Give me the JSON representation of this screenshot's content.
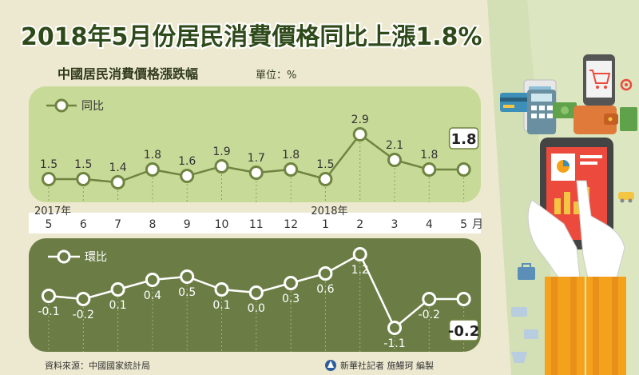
{
  "header": {
    "title": "2018年5月份居民消費價格同比上漲1.8%",
    "subtitle": "中國居民消費價格漲跌幅",
    "unit_label": "單位：%"
  },
  "chart_data": [
    {
      "type": "line",
      "name": "yoy",
      "legend": "同比",
      "categories": [
        "5",
        "6",
        "7",
        "8",
        "9",
        "10",
        "11",
        "12",
        "1",
        "2",
        "3",
        "4",
        "5"
      ],
      "year_labels": [
        {
          "index": 0,
          "label": "2017年"
        },
        {
          "index": 8,
          "label": "2018年"
        }
      ],
      "month_suffix": "月",
      "values": [
        1.5,
        1.5,
        1.4,
        1.8,
        1.6,
        1.9,
        1.7,
        1.8,
        1.5,
        2.9,
        2.1,
        1.8,
        1.8
      ],
      "highlight_last": true,
      "colors": {
        "panel": "#c8da98",
        "line": "#6e8440",
        "marker": "#ffffff",
        "text": "#333333"
      }
    },
    {
      "type": "line",
      "name": "mom",
      "legend": "環比",
      "categories": [
        "5",
        "6",
        "7",
        "8",
        "9",
        "10",
        "11",
        "12",
        "1",
        "2",
        "3",
        "4",
        "5"
      ],
      "values": [
        -0.1,
        -0.2,
        0.1,
        0.4,
        0.5,
        0.1,
        0.0,
        0.3,
        0.6,
        1.2,
        -1.1,
        -0.2,
        -0.2
      ],
      "highlight_last": true,
      "colors": {
        "panel": "#6b7d45",
        "line": "#ffffff",
        "marker": "#6b7d45",
        "text": "#ffffff"
      }
    }
  ],
  "footer": {
    "source": "資料來源：中國國家統計局",
    "credit": "新華社記者 施鰻珂 編製"
  },
  "colors": {
    "title": "#2f4a1a",
    "background": "#ede9d0",
    "accent_green": "#7a9a3c",
    "phone": "#ec4a3c",
    "sleeve": "#f4a21c"
  },
  "icons": [
    "shopping-cart-icon",
    "calculator-icon",
    "credit-card-icon",
    "wallet-icon",
    "smartphone-icon",
    "hand-icon",
    "car-icon",
    "briefcase-icon",
    "basket-icon",
    "monitor-icon",
    "receipt-icon",
    "xinhua-logo-icon"
  ]
}
